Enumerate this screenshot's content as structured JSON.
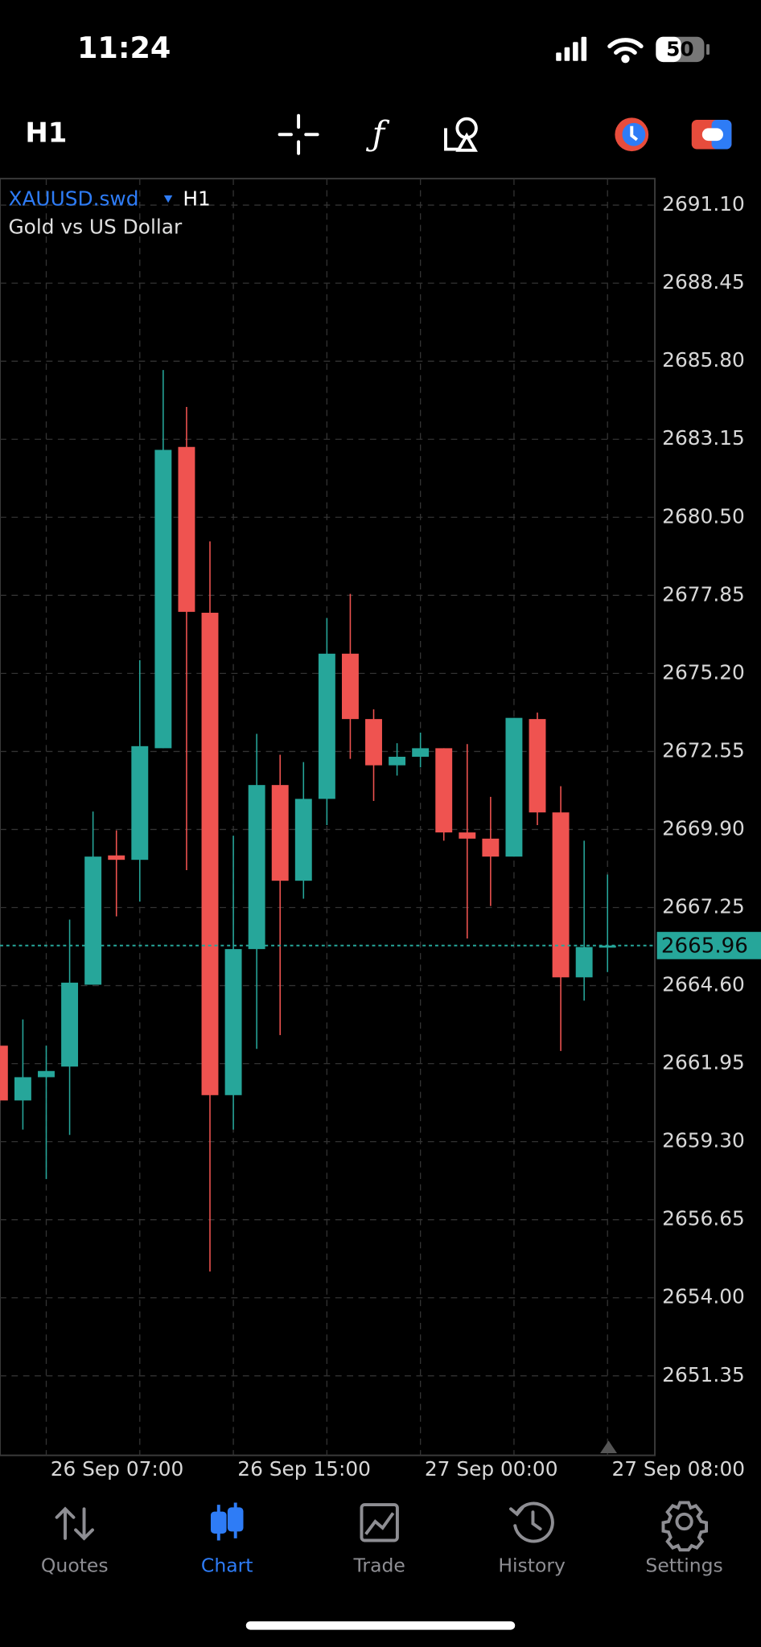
{
  "status_bar": {
    "time": "11:24",
    "battery": "50"
  },
  "toolbar": {
    "timeframe": "H1"
  },
  "chart_data": {
    "type": "candlestick",
    "symbol": "XAUUSD.swd",
    "timeframe": "H1",
    "description": "Gold vs US Dollar",
    "categories": [
      null,
      null,
      "26 Sep 07:00",
      null,
      null,
      null,
      null,
      null,
      null,
      null,
      "26 Sep 15:00",
      null,
      null,
      null,
      null,
      null,
      null,
      null,
      "27 Sep 00:00",
      null,
      null,
      null,
      null,
      null,
      null,
      null,
      "27 Sep 08:00"
    ],
    "open": [
      2662.56,
      2660.7,
      2661.49,
      2661.85,
      2664.63,
      2669.02,
      2668.87,
      2672.66,
      2682.89,
      2677.26,
      2660.88,
      2665.84,
      2671.41,
      2668.16,
      2670.94,
      2675.87,
      2673.65,
      2672.08,
      2672.37,
      2672.66,
      2669.8,
      2669.59,
      2668.98,
      2673.65,
      2670.48,
      2664.88,
      2665.91
    ],
    "high": [
      2662.74,
      2663.45,
      2662.56,
      2666.84,
      2670.51,
      2669.87,
      2675.65,
      2685.5,
      2684.25,
      2679.68,
      2669.69,
      2673.15,
      2672.44,
      2672.19,
      2677.08,
      2677.9,
      2673.98,
      2672.83,
      2673.19,
      2672.66,
      2672.8,
      2671.01,
      2673.69,
      2673.87,
      2671.37,
      2669.52,
      2668.37
    ],
    "low": [
      2660.6,
      2659.71,
      2658.03,
      2659.53,
      2664.63,
      2666.95,
      2667.45,
      2672.66,
      2668.52,
      2654.89,
      2659.71,
      2662.45,
      2662.92,
      2667.55,
      2670.05,
      2672.3,
      2670.87,
      2671.73,
      2672.01,
      2669.52,
      2666.2,
      2667.3,
      2668.98,
      2670.05,
      2662.38,
      2664.09,
      2665.06
    ],
    "close": [
      2660.7,
      2661.49,
      2661.7,
      2664.7,
      2668.98,
      2668.87,
      2672.73,
      2682.79,
      2677.29,
      2660.88,
      2665.84,
      2671.41,
      2668.16,
      2670.94,
      2675.87,
      2673.65,
      2672.08,
      2672.37,
      2672.66,
      2669.8,
      2669.59,
      2668.98,
      2673.69,
      2670.48,
      2664.88,
      2665.91,
      2665.96
    ],
    "up_color": "#26a69a",
    "down_color": "#ef5350",
    "ylim": [
      2648.65,
      2692.0
    ],
    "yticks": [
      {
        "value": 2691.1,
        "label": "2691.10"
      },
      2688.45,
      {
        "value": 2685.8,
        "label": "2685.80"
      },
      2683.15,
      {
        "value": 2680.5,
        "label": "2680.50"
      },
      2677.85,
      {
        "value": 2675.2,
        "label": "2675.20"
      },
      2672.55,
      {
        "value": 2669.9,
        "label": "2669.90"
      },
      2667.25,
      {
        "value": 2664.6,
        "label": "2664.60"
      },
      2661.95,
      {
        "value": 2659.3,
        "label": "2659.30"
      },
      2656.65,
      {
        "value": 2654.0,
        "label": "2654.00"
      },
      2651.35
    ],
    "current_price": 2665.96,
    "grid": true
  },
  "tab_bar": {
    "tabs": [
      {
        "label": "Quotes",
        "active": false
      },
      {
        "label": "Chart",
        "active": true
      },
      {
        "label": "Trade",
        "active": false
      },
      {
        "label": "History",
        "active": false
      },
      {
        "label": "Settings",
        "active": false
      }
    ]
  }
}
